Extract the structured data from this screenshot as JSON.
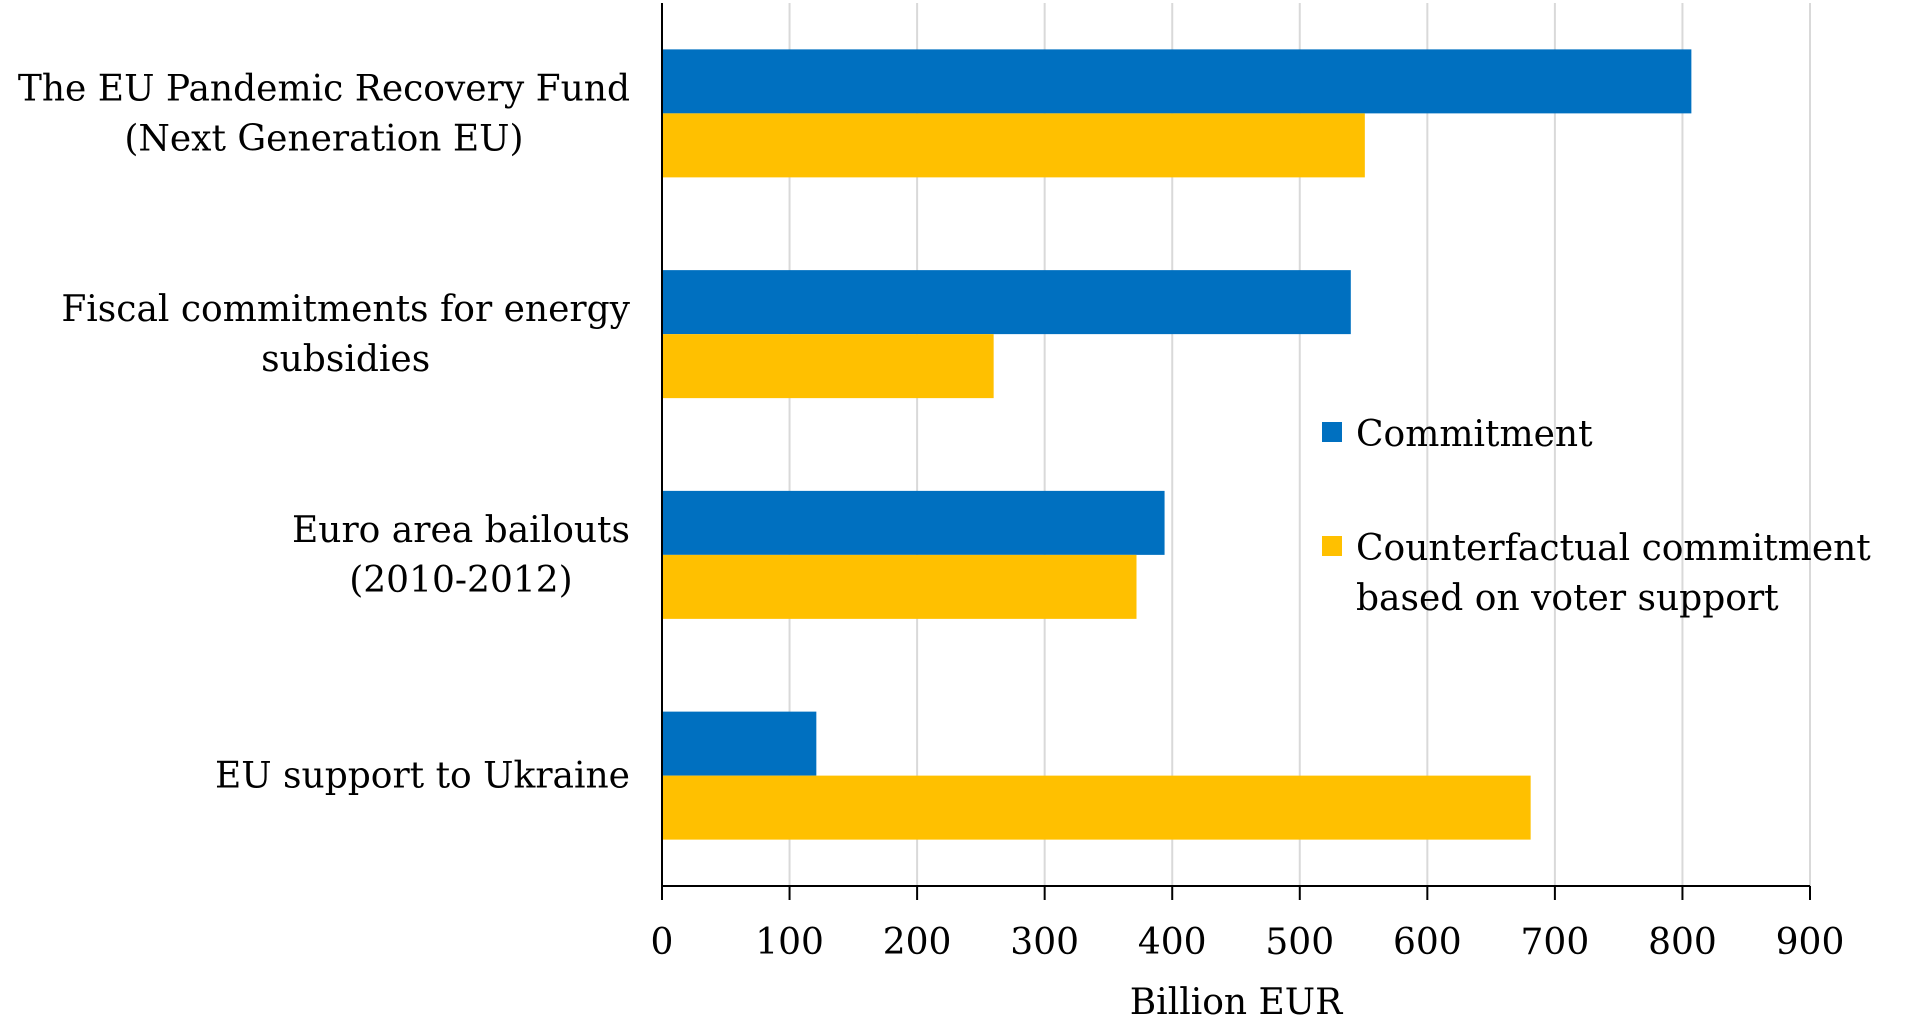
{
  "chart_data": {
    "type": "bar",
    "orientation": "horizontal",
    "title": "",
    "xlabel": "Billion EUR",
    "ylabel": "",
    "xlim": [
      0,
      900
    ],
    "xticks": [
      0,
      100,
      200,
      300,
      400,
      500,
      600,
      700,
      800,
      900
    ],
    "xtick_labels": [
      "0",
      "100",
      "200",
      "300",
      "400",
      "500",
      "600",
      "700",
      "800",
      "900"
    ],
    "grid": "vertical",
    "categories": [
      [
        "The EU Pandemic Recovery Fund",
        "(Next Generation EU)"
      ],
      [
        "Fiscal commitments for energy",
        "subsidies"
      ],
      [
        "Euro area bailouts",
        "(2010-2012)"
      ],
      [
        "EU support to Ukraine"
      ]
    ],
    "series": [
      {
        "name": "Commitment",
        "color": "#0070C0",
        "values": [
          807,
          540,
          394,
          121
        ]
      },
      {
        "name": "Counterfactual commitment based on voter support",
        "color": "#FFC000",
        "values": [
          551,
          260,
          372,
          681
        ]
      }
    ],
    "legend": {
      "placement": "center-right",
      "entries": [
        {
          "lines": [
            "Commitment"
          ],
          "color": "#0070C0"
        },
        {
          "lines": [
            "Counterfactual commitment",
            "based on voter support"
          ],
          "color": "#FFC000"
        }
      ]
    }
  }
}
